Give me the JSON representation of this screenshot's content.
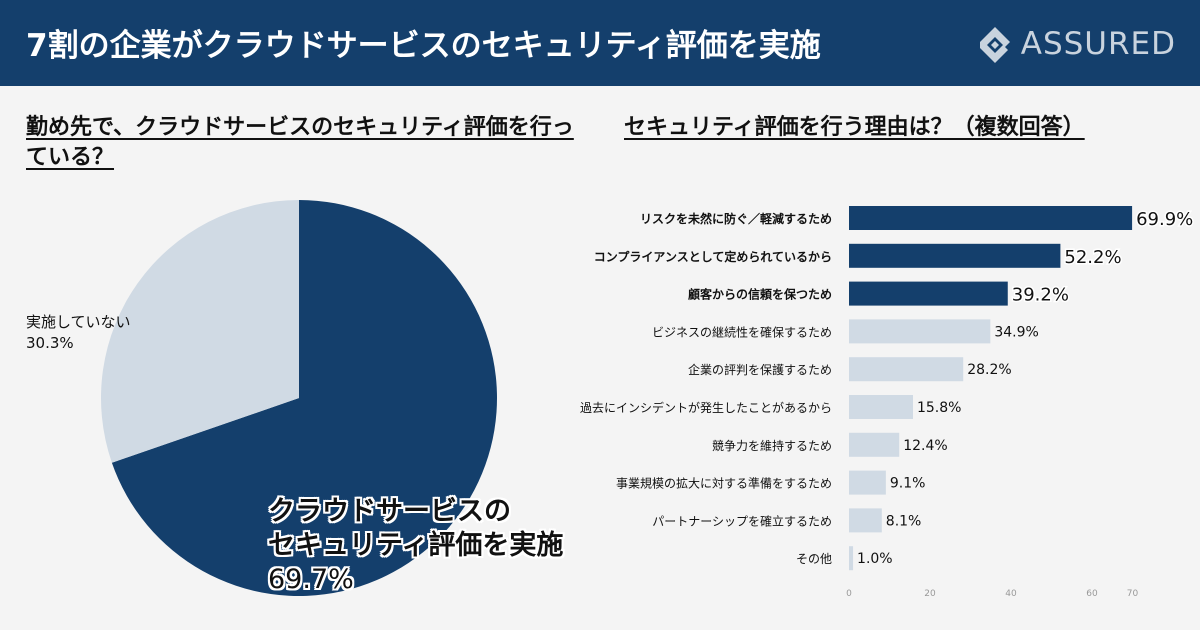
{
  "header": {
    "title": "7割の企業がクラウドサービスのセキュリティ評価を実施",
    "logo_text": "ASSURED",
    "logo_icon": "assured-logo-icon",
    "background": "#143f6c"
  },
  "colors": {
    "dark": "#143f6c",
    "light": "#d0dae4",
    "axis_text": "#999999"
  },
  "chart_data": [
    {
      "type": "pie",
      "title": "勤め先で、クラウドサービスのセキュリティ評価を行っている？",
      "slices": [
        {
          "label": "クラウドサービスの\nセキュリティ評価を実施",
          "value": 69.7,
          "value_label": "69.7%",
          "color": "#143f6c"
        },
        {
          "label": "実施していない",
          "value": 30.3,
          "value_label": "30.3%",
          "color": "#d0dae4"
        }
      ]
    },
    {
      "type": "bar",
      "orientation": "horizontal",
      "title": "セキュリティ評価を行う理由は？（複数回答）",
      "categories": [
        "リスクを未然に防ぐ／軽減するため",
        "コンプライアンスとして定められているから",
        "顧客からの信頼を保つため",
        "ビジネスの継続性を確保するため",
        "企業の評判を保護するため",
        "過去にインシデントが発生したことがあるから",
        "競争力を維持するため",
        "事業規模の拡大に対する準備をするため",
        "パートナーシップを確立するため",
        "その他"
      ],
      "values": [
        69.9,
        52.2,
        39.2,
        34.9,
        28.2,
        15.8,
        12.4,
        9.1,
        8.1,
        1.0
      ],
      "value_labels": [
        "69.9%",
        "52.2%",
        "39.2%",
        "34.9%",
        "28.2%",
        "15.8%",
        "12.4%",
        "9.1%",
        "8.1%",
        "1.0%"
      ],
      "highlighted": [
        true,
        true,
        true,
        false,
        false,
        false,
        false,
        false,
        false,
        false
      ],
      "xlim": [
        0,
        70
      ],
      "xticks": [
        "0",
        "20",
        "40",
        "60",
        "70"
      ],
      "xtick_values": [
        0,
        20,
        40,
        60,
        70
      ],
      "grid": false
    }
  ]
}
